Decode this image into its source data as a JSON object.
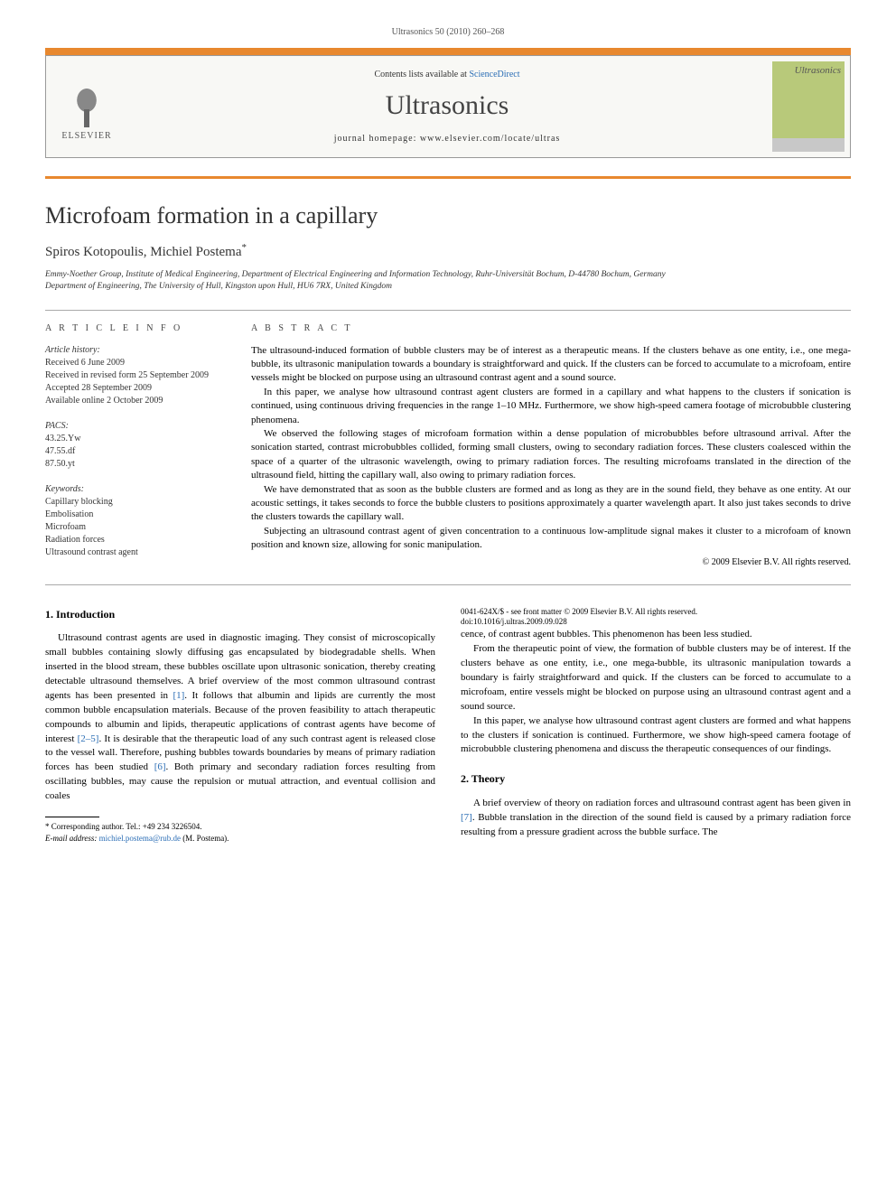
{
  "header_line": "Ultrasonics 50 (2010) 260–268",
  "contents_available": "Contents lists available at ",
  "sciencedirect": "ScienceDirect",
  "journal_title": "Ultrasonics",
  "homepage_label": "journal homepage: www.elsevier.com/locate/ultras",
  "publisher": "ELSEVIER",
  "cover_text": "Ultrasonics",
  "title": "Microfoam formation in a capillary",
  "authors": "Spiros Kotopoulis, Michiel Postema",
  "author_mark": "*",
  "affil1": "Emmy-Noether Group, Institute of Medical Engineering, Department of Electrical Engineering and Information Technology, Ruhr-Universität Bochum, D-44780 Bochum, Germany",
  "affil2": "Department of Engineering, The University of Hull, Kingston upon Hull, HU6 7RX, United Kingdom",
  "info_heading": "A R T I C L E   I N F O",
  "abstract_heading": "A B S T R A C T",
  "history_label": "Article history:",
  "history_received": "Received 6 June 2009",
  "history_revised": "Received in revised form 25 September 2009",
  "history_accepted": "Accepted 28 September 2009",
  "history_online": "Available online 2 October 2009",
  "pacs_label": "PACS:",
  "pacs1": "43.25.Yw",
  "pacs2": "47.55.df",
  "pacs3": "87.50.yt",
  "kw_label": "Keywords:",
  "kw1": "Capillary blocking",
  "kw2": "Embolisation",
  "kw3": "Microfoam",
  "kw4": "Radiation forces",
  "kw5": "Ultrasound contrast agent",
  "abs_p1": "The ultrasound-induced formation of bubble clusters may be of interest as a therapeutic means. If the clusters behave as one entity, i.e., one mega-bubble, its ultrasonic manipulation towards a boundary is straightforward and quick. If the clusters can be forced to accumulate to a microfoam, entire vessels might be blocked on purpose using an ultrasound contrast agent and a sound source.",
  "abs_p2": "In this paper, we analyse how ultrasound contrast agent clusters are formed in a capillary and what happens to the clusters if sonication is continued, using continuous driving frequencies in the range 1–10 MHz. Furthermore, we show high-speed camera footage of microbubble clustering phenomena.",
  "abs_p3": "We observed the following stages of microfoam formation within a dense population of microbubbles before ultrasound arrival. After the sonication started, contrast microbubbles collided, forming small clusters, owing to secondary radiation forces. These clusters coalesced within the space of a quarter of the ultrasonic wavelength, owing to primary radiation forces. The resulting microfoams translated in the direction of the ultrasound field, hitting the capillary wall, also owing to primary radiation forces.",
  "abs_p4": "We have demonstrated that as soon as the bubble clusters are formed and as long as they are in the sound field, they behave as one entity. At our acoustic settings, it takes seconds to force the bubble clusters to positions approximately a quarter wavelength apart. It also just takes seconds to drive the clusters towards the capillary wall.",
  "abs_p5": "Subjecting an ultrasound contrast agent of given concentration to a continuous low-amplitude signal makes it cluster to a microfoam of known position and known size, allowing for sonic manipulation.",
  "copyright": "© 2009 Elsevier B.V. All rights reserved.",
  "sec1_heading": "1. Introduction",
  "sec1_p1a": "Ultrasound contrast agents are used in diagnostic imaging. They consist of microscopically small bubbles containing slowly diffusing gas encapsulated by biodegradable shells. When inserted in the blood stream, these bubbles oscillate upon ultrasonic sonication, thereby creating detectable ultrasound themselves. A brief overview of the most common ultrasound contrast agents has been presented in ",
  "ref1": "[1]",
  "sec1_p1b": ". It follows that albumin and lipids are currently the most common bubble encapsulation materials. Because of the proven feasibility to attach therapeutic compounds to albumin and lipids, therapeutic applications of contrast agents have become of interest ",
  "ref25": "[2–5]",
  "sec1_p1c": ". It is desirable that the therapeutic load of any such contrast agent is released close to the vessel wall. Therefore, pushing bubbles towards boundaries by means of primary radiation forces has been studied ",
  "ref6": "[6]",
  "sec1_p1d": ". Both primary and secondary radiation forces resulting from oscillating bubbles, may cause the repulsion or mutual attraction, and eventual collision and coales",
  "sec1_p2": "cence, of contrast agent bubbles. This phenomenon has been less studied.",
  "sec1_p3": "From the therapeutic point of view, the formation of bubble clusters may be of interest. If the clusters behave as one entity, i.e., one mega-bubble, its ultrasonic manipulation towards a boundary is fairly straightforward and quick. If the clusters can be forced to accumulate to a microfoam, entire vessels might be blocked on purpose using an ultrasound contrast agent and a sound source.",
  "sec1_p4": "In this paper, we analyse how ultrasound contrast agent clusters are formed and what happens to the clusters if sonication is continued. Furthermore, we show high-speed camera footage of microbubble clustering phenomena and discuss the therapeutic consequences of our findings.",
  "sec2_heading": "2. Theory",
  "sec2_p1a": "A brief overview of theory on radiation forces and ultrasound contrast agent has been given in ",
  "ref7": "[7]",
  "sec2_p1b": ". Bubble translation in the direction of the sound field is caused by a primary radiation force resulting from a pressure gradient across the bubble surface. The",
  "corr_label": "* Corresponding author. Tel.: +49 234 3226504.",
  "email_label": "E-mail address: ",
  "email": "michiel.postema@rub.de",
  "email_tail": " (M. Postema).",
  "doi1": "0041-624X/$ - see front matter © 2009 Elsevier B.V. All rights reserved.",
  "doi2": "doi:10.1016/j.ultras.2009.09.028",
  "colors": {
    "accent_orange": "#e8882e",
    "link_blue": "#2a6db5",
    "cover_green": "#b8c97a",
    "border_grey": "#999"
  }
}
